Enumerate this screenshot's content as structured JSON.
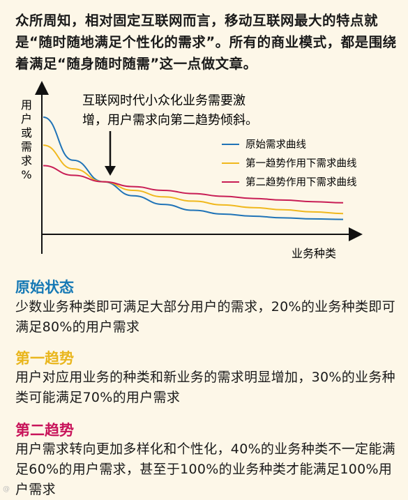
{
  "intro": "众所周知，相对固定互联网而言，移动互联网最大的特点就是“随时随地满足个性化的需求”。所有的商业模式，都是围绕着满足“随身随时随需”这一点做文章。",
  "colors": {
    "background": "#fdf7e8",
    "title_blue": "#1679b5",
    "title_yellow": "#e9b61d",
    "title_red": "#c8145a"
  },
  "chart_data": {
    "type": "line",
    "annotation_lines": [
      "互联网时代小众化业务需要激",
      "增，用户需求向第二趋势倾斜。"
    ],
    "ylabel": "用户或需求%",
    "xlabel": "业务种类",
    "grid": false,
    "legend_position": "top-right",
    "x": [
      0,
      0.1,
      0.2,
      0.3,
      0.4,
      0.5,
      0.6,
      0.7,
      0.8,
      0.9,
      1.0
    ],
    "series": [
      {
        "name": "原始需求曲线",
        "color": "#1f73b7",
        "values": [
          1.0,
          0.6,
          0.4,
          0.27,
          0.19,
          0.135,
          0.1,
          0.08,
          0.065,
          0.055,
          0.05
        ]
      },
      {
        "name": "第一趋势作用下需求曲线",
        "color": "#f0b81d",
        "values": [
          0.74,
          0.52,
          0.4,
          0.32,
          0.26,
          0.22,
          0.185,
          0.16,
          0.14,
          0.12,
          0.105
        ]
      },
      {
        "name": "第二趋势作用下需求曲线",
        "color": "#c81d55",
        "values": [
          0.55,
          0.46,
          0.4,
          0.355,
          0.32,
          0.29,
          0.265,
          0.245,
          0.23,
          0.215,
          0.205
        ]
      }
    ]
  },
  "sections": [
    {
      "title": "原始状态",
      "body": "少数业务种类即可满足大部分用户的需求，20%的业务种类即可满足80%的用户需求"
    },
    {
      "title": "第一趋势",
      "body": "用户对应用业务的种类和新业务的需求明显增加，30%的业务种类可能满足70%的用户需求"
    },
    {
      "title": "第二趋势",
      "body": "用户需求转向更加多样化和个性化，40%的业务种类不一定能满足60%的用户需求，甚至于100%的业务种类才能满足100%用户需求"
    }
  ],
  "watermark": "@"
}
